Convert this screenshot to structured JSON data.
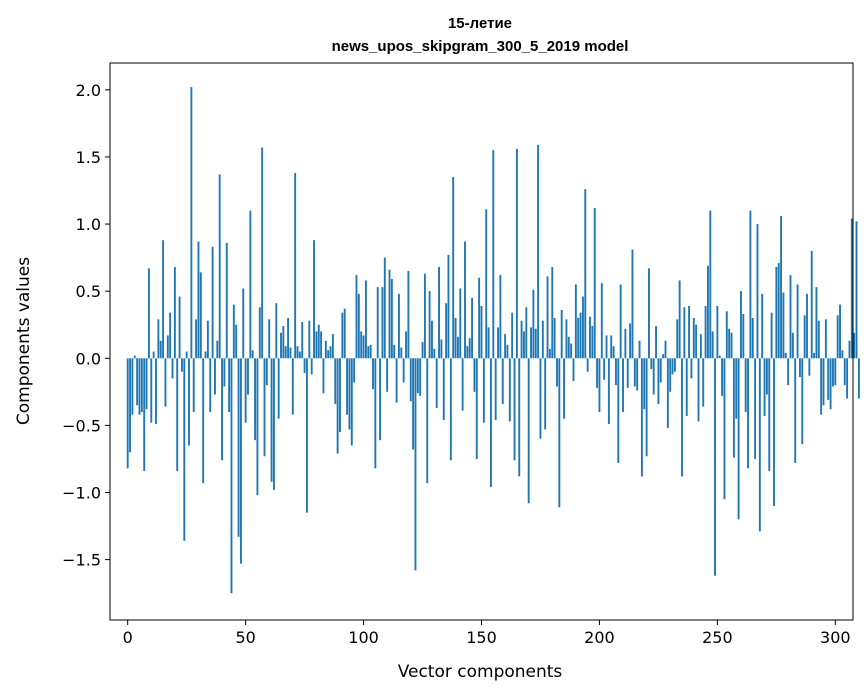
{
  "chart_data": {
    "type": "bar",
    "title": "15-летие",
    "subtitle": "news_upos_skipgram_300_5_2019 model",
    "xlabel": "Vector components",
    "ylabel": "Components values",
    "xlim": [
      -7.5,
      307.5
    ],
    "ylim": [
      -1.95,
      2.2
    ],
    "xticks": [
      0,
      50,
      100,
      150,
      200,
      250,
      300
    ],
    "yticks": [
      -1.5,
      -1.0,
      -0.5,
      0.0,
      0.5,
      1.0,
      1.5,
      2.0
    ],
    "xtick_labels": [
      "0",
      "50",
      "100",
      "150",
      "200",
      "250",
      "300"
    ],
    "ytick_labels": [
      "−1.5",
      "−1.0",
      "−0.5",
      "0.0",
      "0.5",
      "1.0",
      "1.5",
      "2.0"
    ],
    "grid": false,
    "bar_color": "#1f77b4",
    "x_start": 0,
    "values": [
      -0.82,
      -0.7,
      -0.42,
      0.02,
      -0.35,
      -0.42,
      -0.4,
      -0.84,
      -0.38,
      0.67,
      -0.48,
      0.05,
      -0.49,
      0.29,
      0.13,
      0.88,
      -0.36,
      0.17,
      0.34,
      -0.15,
      0.68,
      -0.84,
      0.46,
      -0.1,
      -1.36,
      0.05,
      -0.65,
      2.02,
      -0.4,
      0.29,
      0.87,
      0.64,
      -0.93,
      0.05,
      0.28,
      -0.4,
      0.83,
      -0.27,
      0.13,
      1.37,
      -0.76,
      -0.21,
      0.86,
      -0.4,
      -1.75,
      0.4,
      0.25,
      -1.33,
      -1.53,
      0.52,
      -0.48,
      -0.27,
      1.1,
      0.06,
      -0.61,
      -1.02,
      0.38,
      1.57,
      -0.73,
      -0.2,
      0.29,
      -0.92,
      -0.98,
      0.41,
      -0.45,
      0.19,
      0.24,
      0.09,
      0.3,
      0.08,
      -0.42,
      1.38,
      0.09,
      0.05,
      0.27,
      -0.11,
      -1.15,
      0.28,
      -0.12,
      0.88,
      0.2,
      0.25,
      0.2,
      -0.26,
      0.13,
      0.06,
      0.09,
      0.18,
      -0.34,
      -0.71,
      -0.55,
      0.34,
      0.37,
      -0.42,
      -0.53,
      -0.65,
      -0.18,
      0.62,
      0.48,
      0.2,
      0.17,
      0.58,
      0.09,
      0.1,
      -0.23,
      -0.82,
      0.53,
      -0.61,
      0.53,
      0.75,
      -0.25,
      0.66,
      0.59,
      0.1,
      -0.33,
      0.48,
      0.08,
      -0.18,
      0.2,
      0.65,
      -0.32,
      -0.68,
      -1.58,
      -0.26,
      -0.28,
      0.12,
      0.63,
      -0.93,
      0.5,
      0.28,
      0.07,
      -0.37,
      0.68,
      0.14,
      -0.46,
      0.41,
      0.77,
      -0.76,
      1.35,
      0.3,
      0.16,
      0.52,
      -0.39,
      0.87,
      0.09,
      0.15,
      0.45,
      -0.25,
      -0.75,
      0.6,
      0.39,
      -0.48,
      1.11,
      0.23,
      -0.96,
      1.55,
      -0.46,
      0.23,
      0.62,
      -0.34,
      0.18,
      0.1,
      -0.47,
      0.34,
      -0.76,
      1.56,
      -0.88,
      0.28,
      0.2,
      0.38,
      -1.08,
      0.23,
      0.51,
      0.22,
      1.59,
      -0.6,
      0.28,
      -0.53,
      0.61,
      0.07,
      0.68,
      0.3,
      -0.21,
      -1.11,
      0.36,
      -0.45,
      0.29,
      0.16,
      0.11,
      -0.17,
      0.55,
      0.3,
      0.34,
      0.46,
      1.26,
      -0.1,
      0.31,
      0.24,
      1.12,
      -0.22,
      -0.4,
      0.56,
      -0.16,
      0.17,
      -0.49,
      0.17,
      0.09,
      -0.2,
      -0.78,
      0.55,
      -0.4,
      0.22,
      -0.22,
      0.26,
      0.81,
      -0.21,
      -0.24,
      0.13,
      -0.88,
      -0.38,
      -0.73,
      0.67,
      -0.08,
      -0.27,
      0.24,
      -0.34,
      -0.18,
      0.03,
      0.13,
      -0.52,
      -0.25,
      -0.12,
      -0.1,
      0.29,
      0.58,
      -0.88,
      0.38,
      -0.43,
      0.39,
      -0.15,
      0.3,
      0.25,
      -0.47,
      0.18,
      -0.36,
      0.39,
      0.69,
      1.1,
      0.2,
      -1.62,
      0.39,
      0.02,
      -0.28,
      -1.05,
      0.35,
      0.22,
      0.19,
      -0.74,
      -0.45,
      -1.2,
      0.5,
      0.33,
      -0.4,
      -0.82,
      1.1,
      0.3,
      -0.75,
      1.0,
      -1.29,
      0.48,
      -0.43,
      -0.27,
      -0.84,
      0.34,
      -1.1,
      0.68,
      0.71,
      1.06,
      0.49,
      0.04,
      -0.2,
      0.62,
      0.19,
      -0.78,
      0.55,
      -0.14,
      -0.64,
      0.32,
      0.48,
      -0.13,
      0.8,
      0.04,
      0.53,
      0.28,
      -0.42,
      -0.35,
      0.29,
      -0.31,
      -0.38,
      -0.21,
      -0.2,
      0.32,
      0.4,
      0.06,
      -0.2,
      -0.3,
      0.13,
      1.04,
      0.19,
      1.02,
      -0.3
    ]
  }
}
